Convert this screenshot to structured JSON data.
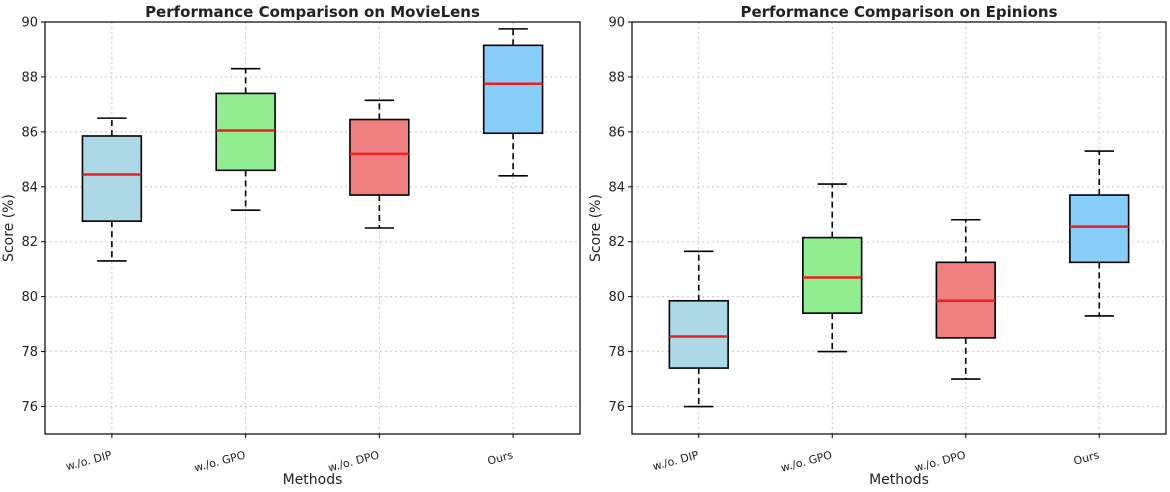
{
  "chart_data": [
    {
      "type": "boxplot",
      "title": "Performance Comparison on MovieLens",
      "xlabel": "Methods",
      "ylabel": "Score (%)",
      "ylim": [
        75,
        90
      ],
      "yticks": [
        "76",
        "78",
        "80",
        "82",
        "84",
        "86",
        "88",
        "90"
      ],
      "grid": true,
      "categories": [
        "w./o. DIP",
        "w./o. GPO",
        "w./o. DPO",
        "Ours"
      ],
      "boxes": [
        {
          "name": "w./o. DIP",
          "min": 81.3,
          "q1": 82.75,
          "median": 84.45,
          "q3": 85.85,
          "max": 86.5
        },
        {
          "name": "w./o. GPO",
          "min": 83.15,
          "q1": 84.6,
          "median": 86.05,
          "q3": 87.4,
          "max": 88.3
        },
        {
          "name": "w./o. DPO",
          "min": 82.5,
          "q1": 83.7,
          "median": 85.2,
          "q3": 86.45,
          "max": 87.15
        },
        {
          "name": "Ours",
          "min": 84.4,
          "q1": 85.95,
          "median": 87.75,
          "q3": 89.15,
          "max": 89.75
        }
      ]
    },
    {
      "type": "boxplot",
      "title": "Performance Comparison on Epinions",
      "xlabel": "Methods",
      "ylabel": "Score (%)",
      "ylim": [
        75,
        90
      ],
      "yticks": [
        "76",
        "78",
        "80",
        "82",
        "84",
        "86",
        "88",
        "90"
      ],
      "grid": true,
      "categories": [
        "w./o. DIP",
        "w./o. GPO",
        "w./o. DPO",
        "Ours"
      ],
      "boxes": [
        {
          "name": "w./o. DIP",
          "min": 76.0,
          "q1": 77.4,
          "median": 78.55,
          "q3": 79.85,
          "max": 81.65
        },
        {
          "name": "w./o. GPO",
          "min": 78.0,
          "q1": 79.4,
          "median": 80.7,
          "q3": 82.15,
          "max": 84.1
        },
        {
          "name": "w./o. DPO",
          "min": 77.0,
          "q1": 78.5,
          "median": 79.85,
          "q3": 81.25,
          "max": 82.8
        },
        {
          "name": "Ours",
          "min": 79.3,
          "q1": 81.25,
          "median": 82.55,
          "q3": 83.7,
          "max": 85.3
        }
      ]
    }
  ],
  "colors": {
    "box_fills": [
      "#add8e6",
      "#90ee90",
      "#f08080",
      "#87cefa"
    ],
    "median": "#e8201f",
    "grid": "#c8c8c8",
    "axis": "#000000"
  }
}
